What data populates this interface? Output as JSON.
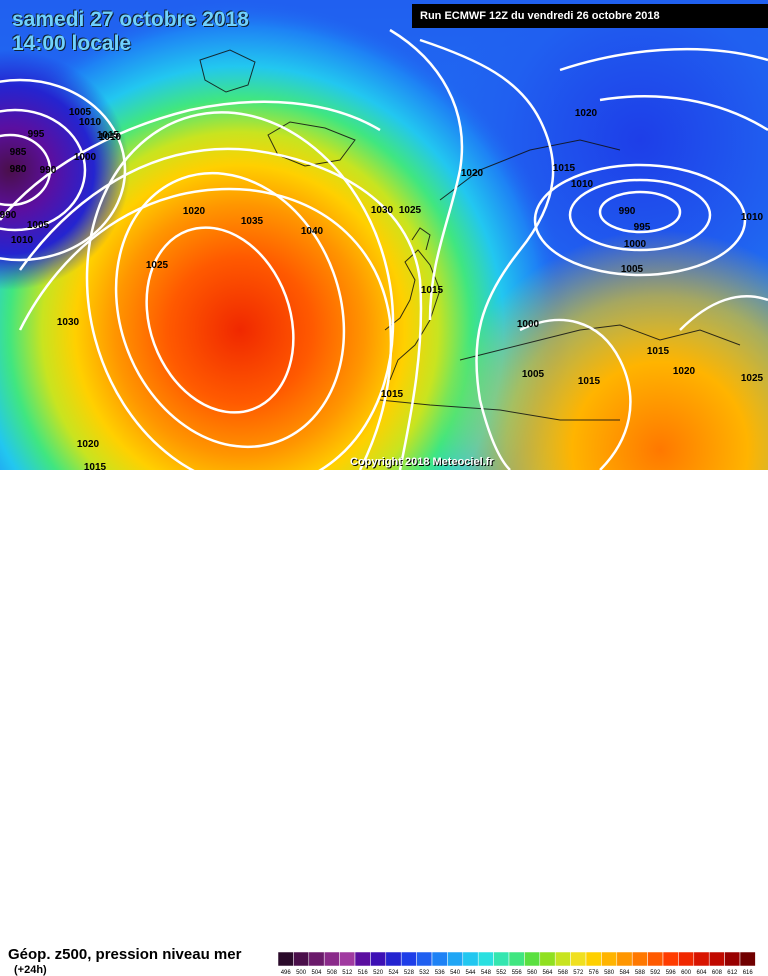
{
  "header": {
    "date": "samedi 27 octobre 2018",
    "time": "14:00 locale",
    "run": "Run ECMWF 12Z du vendredi 26 octobre 2018"
  },
  "copyright": "Copyright 2018 Meteociel.fr",
  "legend": {
    "title": "Géop. z500, pression niveau mer",
    "subtitle": "(+24h)",
    "values": [
      "496",
      "500",
      "504",
      "508",
      "512",
      "516",
      "520",
      "524",
      "528",
      "532",
      "536",
      "540",
      "544",
      "548",
      "552",
      "556",
      "560",
      "564",
      "568",
      "572",
      "576",
      "580",
      "584",
      "588",
      "592",
      "596",
      "600",
      "604",
      "608",
      "612",
      "616"
    ],
    "colors": [
      "#2a0a2a",
      "#4a0f4a",
      "#6a1a6a",
      "#8a2a8a",
      "#a03aa0",
      "#5b0fa0",
      "#3d10b5",
      "#2424d0",
      "#1e3ee8",
      "#2060f0",
      "#1e82f5",
      "#20a6f5",
      "#22c7f0",
      "#2ae0e0",
      "#34e6b0",
      "#40e680",
      "#5ae040",
      "#90e020",
      "#c8e420",
      "#f0e020",
      "#ffd000",
      "#ffb400",
      "#ff9600",
      "#ff7800",
      "#ff5a00",
      "#ff3c00",
      "#f02800",
      "#d81400",
      "#c00a00",
      "#980000",
      "#700000"
    ]
  },
  "isobars": [
    {
      "text": "995"
    },
    {
      "text": "985"
    },
    {
      "text": "980"
    },
    {
      "text": "990"
    },
    {
      "text": "990"
    },
    {
      "text": "1005"
    },
    {
      "text": "1010"
    },
    {
      "text": "1015"
    },
    {
      "text": "1000"
    },
    {
      "text": "1005"
    },
    {
      "text": "1010"
    },
    {
      "text": "1020"
    },
    {
      "text": "1025"
    },
    {
      "text": "1030"
    },
    {
      "text": "1035"
    },
    {
      "text": "1040"
    },
    {
      "text": "1030"
    },
    {
      "text": "1025"
    },
    {
      "text": "1020"
    },
    {
      "text": "1015"
    },
    {
      "text": "1020"
    },
    {
      "text": "1015"
    },
    {
      "text": "1010"
    },
    {
      "text": "990"
    },
    {
      "text": "995"
    },
    {
      "text": "1000"
    },
    {
      "text": "1005"
    },
    {
      "text": "1010"
    },
    {
      "text": "1000"
    },
    {
      "text": "1005"
    },
    {
      "text": "1015"
    },
    {
      "text": "1015"
    },
    {
      "text": "1020"
    },
    {
      "text": "1025"
    },
    {
      "text": "1015"
    },
    {
      "text": "1020"
    },
    {
      "text": "1015"
    },
    {
      "text": "1010"
    }
  ]
}
